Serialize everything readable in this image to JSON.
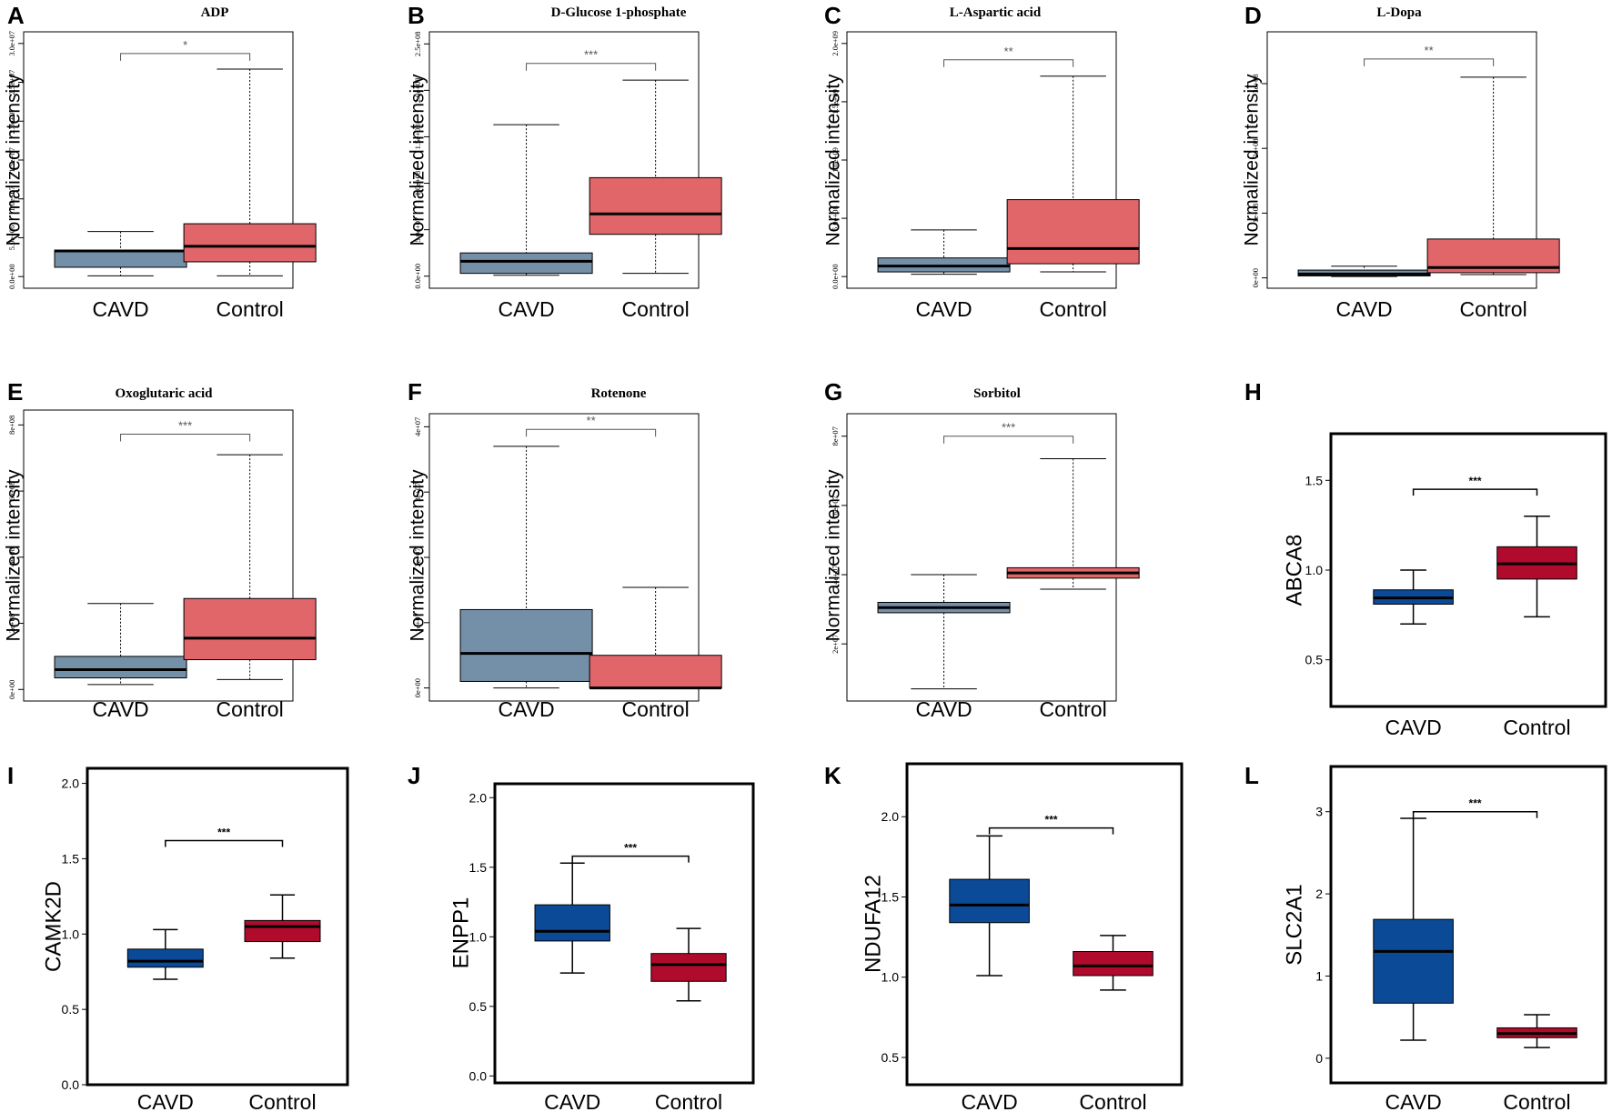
{
  "chart_data": [
    {
      "panel": "A",
      "style": "a",
      "type": "box",
      "title": "ADP",
      "ylabel": "Normalized intensity",
      "categories": [
        "CAVD",
        "Control"
      ],
      "ylim": [
        -1500000,
        31500000
      ],
      "yticks": [
        0,
        5000000,
        10000000,
        15000000,
        20000000,
        25000000,
        30000000
      ],
      "yticklabels": [
        "0.0e+00",
        "5.0e+06",
        "1.0e+07",
        "1.5e+07",
        "2.0e+07",
        "2.5e+07",
        "3.0e+07"
      ],
      "boxes": [
        {
          "whisker_low": 100000,
          "q1": 1200000,
          "median": 3300000,
          "q3": 3400000,
          "whisker_high": 5800000,
          "color": "#7490a8"
        },
        {
          "whisker_low": 100000,
          "q1": 1900000,
          "median": 3900000,
          "q3": 6800000,
          "whisker_high": 26700000,
          "color": "#e0666a"
        }
      ],
      "significance": "*",
      "sig_y": 28700000
    },
    {
      "panel": "B",
      "style": "a",
      "type": "box",
      "title": "D-Glucose 1-phosphate",
      "ylabel": "Normalized intensity",
      "categories": [
        "CAVD",
        "Control"
      ],
      "ylim": [
        -13000000,
        263000000
      ],
      "yticks": [
        0,
        50000000,
        100000000,
        150000000,
        200000000,
        250000000
      ],
      "yticklabels": [
        "0.0e+00",
        "5.0e+07",
        "1.0e+08",
        "1.5e+08",
        "2.0e+08",
        "2.5e+08"
      ],
      "boxes": [
        {
          "whisker_low": 1000000,
          "q1": 3000000,
          "median": 16000000,
          "q3": 25000000,
          "whisker_high": 163000000,
          "color": "#7490a8"
        },
        {
          "whisker_low": 3000000,
          "q1": 45000000,
          "median": 67000000,
          "q3": 106000000,
          "whisker_high": 211000000,
          "color": "#e0666a"
        }
      ],
      "significance": "***",
      "sig_y": 229000000
    },
    {
      "panel": "C",
      "style": "a",
      "type": "box",
      "title": "L-Aspartic acid",
      "ylabel": "Normalized intensity",
      "categories": [
        "CAVD",
        "Control"
      ],
      "ylim": [
        -100000000,
        2100000000
      ],
      "yticks": [
        0,
        500000000,
        1000000000,
        1500000000,
        2000000000
      ],
      "yticklabels": [
        "0.0e+00",
        "5.0e+08",
        "1.0e+09",
        "1.5e+09",
        "2.0e+09"
      ],
      "boxes": [
        {
          "whisker_low": 20000000,
          "q1": 40000000,
          "median": 90000000,
          "q3": 160000000,
          "whisker_high": 400000000,
          "color": "#7490a8"
        },
        {
          "whisker_low": 40000000,
          "q1": 110000000,
          "median": 240000000,
          "q3": 660000000,
          "whisker_high": 1720000000,
          "color": "#e0666a"
        }
      ],
      "significance": "**",
      "sig_y": 1860000000
    },
    {
      "panel": "D",
      "style": "a",
      "type": "box",
      "title": "L-Dopa",
      "ylabel": "Normalized intensity",
      "categories": [
        "CAVD",
        "Control"
      ],
      "ylim": [
        -16000000,
        380000000
      ],
      "yticks": [
        0,
        100000000,
        200000000,
        300000000
      ],
      "yticklabels": [
        "0e+00",
        "1e+08",
        "2e+08",
        "3e+08"
      ],
      "boxes": [
        {
          "whisker_low": 2000000,
          "q1": 3000000,
          "median": 6000000,
          "q3": 12000000,
          "whisker_high": 18000000,
          "color": "#7490a8"
        },
        {
          "whisker_low": 5000000,
          "q1": 8000000,
          "median": 16000000,
          "q3": 60000000,
          "whisker_high": 310000000,
          "color": "#e0666a"
        }
      ],
      "significance": "**",
      "sig_y": 338000000
    },
    {
      "panel": "E",
      "style": "a",
      "type": "box",
      "title": "Oxoglutaric acid",
      "ylabel": "Normalized intensity",
      "categories": [
        "CAVD",
        "Control"
      ],
      "ylim": [
        -35000000,
        845000000
      ],
      "yticks": [
        0,
        200000000,
        400000000,
        600000000,
        800000000
      ],
      "yticklabels": [
        "0e+00",
        "2e+08",
        "4e+08",
        "6e+08",
        "8e+08"
      ],
      "boxes": [
        {
          "whisker_low": 15000000,
          "q1": 35000000,
          "median": 60000000,
          "q3": 100000000,
          "whisker_high": 260000000,
          "color": "#7490a8"
        },
        {
          "whisker_low": 30000000,
          "q1": 90000000,
          "median": 155000000,
          "q3": 275000000,
          "whisker_high": 710000000,
          "color": "#e0666a"
        }
      ],
      "significance": "***",
      "sig_y": 772000000
    },
    {
      "panel": "F",
      "style": "a",
      "type": "box",
      "title": "Rotenone",
      "ylabel": "Normalized intensity",
      "categories": [
        "CAVD",
        "Control"
      ],
      "ylim": [
        -2000000,
        42000000
      ],
      "yticks": [
        0,
        10000000,
        20000000,
        30000000,
        40000000
      ],
      "yticklabels": [
        "0e+00",
        "1e+07",
        "2e+07",
        "3e+07",
        "4e+07"
      ],
      "boxes": [
        {
          "whisker_low": 0,
          "q1": 1000000,
          "median": 5300000,
          "q3": 12000000,
          "whisker_high": 37000000,
          "color": "#7490a8"
        },
        {
          "whisker_low": 0,
          "q1": 0,
          "median": 0,
          "q3": 5000000,
          "whisker_high": 15400000,
          "color": "#e0666a"
        }
      ],
      "significance": "**",
      "sig_y": 39600000
    },
    {
      "panel": "G",
      "style": "a",
      "type": "box",
      "title": "Sorbitol",
      "ylabel": "Normalized intensity",
      "categories": [
        "CAVD",
        "Control"
      ],
      "ylim": [
        3500000,
        86500000
      ],
      "yticks": [
        20000000,
        40000000,
        60000000,
        80000000
      ],
      "yticklabels": [
        "2e+07",
        "4e+07",
        "6e+07",
        "8e+07"
      ],
      "boxes": [
        {
          "whisker_low": 7000000,
          "q1": 29000000,
          "median": 30500000,
          "q3": 32000000,
          "whisker_high": 40000000,
          "color": "#7490a8"
        },
        {
          "whisker_low": 35800000,
          "q1": 39000000,
          "median": 40500000,
          "q3": 42000000,
          "whisker_high": 73500000,
          "color": "#e0666a"
        }
      ],
      "significance": "***",
      "sig_y": 80000000
    },
    {
      "panel": "H",
      "style": "b",
      "type": "box",
      "title": "",
      "ylabel": "ABCA8",
      "categories": [
        "CAVD",
        "Control"
      ],
      "ylim": [
        0.24,
        1.76
      ],
      "yticks": [
        0.5,
        1.0,
        1.5
      ],
      "yticklabels": [
        "0.5",
        "1.0",
        "1.5"
      ],
      "boxes": [
        {
          "whisker_low": 0.7,
          "q1": 0.81,
          "median": 0.845,
          "q3": 0.89,
          "whisker_high": 1.0,
          "color": "#0b4a96"
        },
        {
          "whisker_low": 0.74,
          "q1": 0.95,
          "median": 1.035,
          "q3": 1.13,
          "whisker_high": 1.3,
          "color": "#b00a2c"
        }
      ],
      "significance": "***",
      "sig_y": 1.45
    },
    {
      "panel": "I",
      "style": "b",
      "type": "box",
      "title": "",
      "ylabel": "CAMK2D",
      "categories": [
        "CAVD",
        "Control"
      ],
      "ylim": [
        0.0,
        2.1
      ],
      "yticks": [
        0.0,
        0.5,
        1.0,
        1.5,
        2.0
      ],
      "yticklabels": [
        "0.0",
        "0.5",
        "1.0",
        "1.5",
        "2.0"
      ],
      "boxes": [
        {
          "whisker_low": 0.7,
          "q1": 0.78,
          "median": 0.82,
          "q3": 0.9,
          "whisker_high": 1.03,
          "color": "#0b4a96"
        },
        {
          "whisker_low": 0.84,
          "q1": 0.95,
          "median": 1.05,
          "q3": 1.09,
          "whisker_high": 1.26,
          "color": "#b00a2c"
        }
      ],
      "significance": "***",
      "sig_y": 1.62
    },
    {
      "panel": "J",
      "style": "b",
      "type": "box",
      "title": "",
      "ylabel": "ENPP1",
      "categories": [
        "CAVD",
        "Control"
      ],
      "ylim": [
        -0.05,
        2.1
      ],
      "yticks": [
        0.0,
        0.5,
        1.0,
        1.5,
        2.0
      ],
      "yticklabels": [
        "0.0",
        "0.5",
        "1.0",
        "1.5",
        "2.0"
      ],
      "boxes": [
        {
          "whisker_low": 0.74,
          "q1": 0.97,
          "median": 1.04,
          "q3": 1.23,
          "whisker_high": 1.53,
          "color": "#0b4a96"
        },
        {
          "whisker_low": 0.54,
          "q1": 0.68,
          "median": 0.8,
          "q3": 0.88,
          "whisker_high": 1.06,
          "color": "#b00a2c"
        }
      ],
      "significance": "***",
      "sig_y": 1.58
    },
    {
      "panel": "K",
      "style": "b",
      "type": "box",
      "title": "",
      "ylabel": "NDUFA12",
      "categories": [
        "CAVD",
        "Control"
      ],
      "ylim": [
        0.33,
        2.33
      ],
      "yticks": [
        0.5,
        1.0,
        1.5,
        2.0
      ],
      "yticklabels": [
        "0.5",
        "1.0",
        "1.5",
        "2.0"
      ],
      "boxes": [
        {
          "whisker_low": 1.01,
          "q1": 1.34,
          "median": 1.45,
          "q3": 1.61,
          "whisker_high": 1.88,
          "color": "#0b4a96"
        },
        {
          "whisker_low": 0.92,
          "q1": 1.01,
          "median": 1.07,
          "q3": 1.16,
          "whisker_high": 1.26,
          "color": "#b00a2c"
        }
      ],
      "significance": "***",
      "sig_y": 1.93
    },
    {
      "panel": "L",
      "style": "b",
      "type": "box",
      "title": "",
      "ylabel": "SLC2A1",
      "categories": [
        "CAVD",
        "Control"
      ],
      "ylim": [
        -0.3,
        3.55
      ],
      "yticks": [
        0,
        1,
        2,
        3
      ],
      "yticklabels": [
        "0",
        "1",
        "2",
        "3"
      ],
      "boxes": [
        {
          "whisker_low": 0.22,
          "q1": 0.67,
          "median": 1.3,
          "q3": 1.69,
          "whisker_high": 2.92,
          "color": "#0b4a96"
        },
        {
          "whisker_low": 0.13,
          "q1": 0.25,
          "median": 0.3,
          "q3": 0.37,
          "whisker_high": 0.53,
          "color": "#b00a2c"
        }
      ],
      "significance": "***",
      "sig_y": 3.0
    }
  ]
}
